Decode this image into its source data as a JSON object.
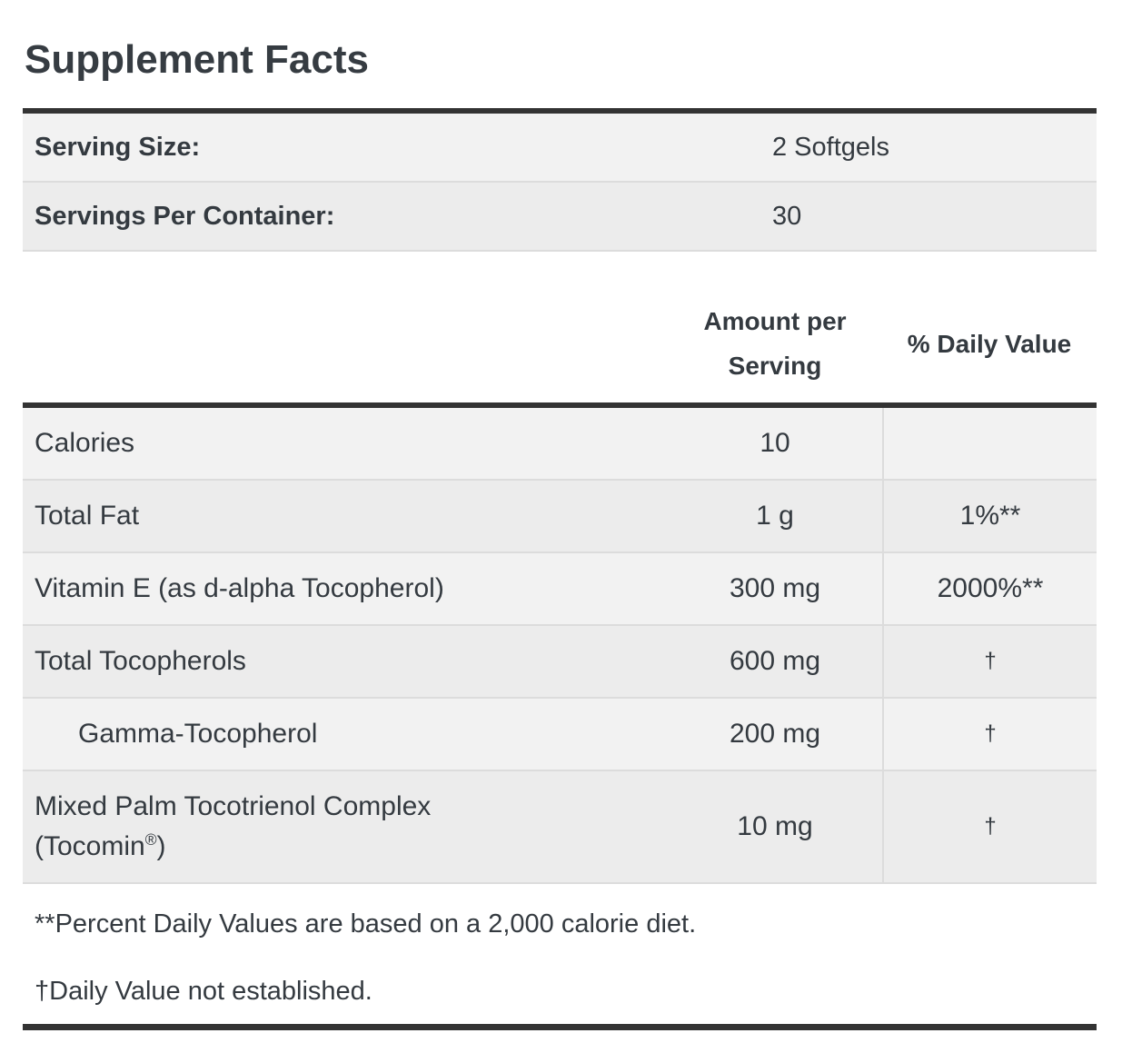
{
  "page": {
    "title": "Supplement Facts"
  },
  "serving": {
    "rows": [
      {
        "label": "Serving Size:",
        "value": "2 Softgels"
      },
      {
        "label": "Servings Per Container:",
        "value": "30"
      }
    ]
  },
  "nutrition": {
    "headers": {
      "amount": "Amount per Serving",
      "daily_value": "% Daily Value"
    },
    "rows": [
      {
        "name": "Calories",
        "amount": "10",
        "daily_value": "",
        "indent": false
      },
      {
        "name": "Total Fat",
        "amount": "1 g",
        "daily_value": "1%**",
        "indent": false
      },
      {
        "name": "Vitamin E (as d-alpha Tocopherol)",
        "amount": "300 mg",
        "daily_value": "2000%**",
        "indent": false
      },
      {
        "name": "Total Tocopherols",
        "amount": "600 mg",
        "daily_value": "†",
        "indent": false
      },
      {
        "name": "Gamma-Tocopherol",
        "amount": "200 mg",
        "daily_value": "†",
        "indent": true
      },
      {
        "name": "Mixed Palm Tocotrienol Complex (Tocomin®)",
        "amount": "10 mg",
        "daily_value": "†",
        "indent": false
      }
    ]
  },
  "footnotes": {
    "percent": "**Percent Daily Values are based on a 2,000 calorie diet.",
    "dagger": "†Daily Value not established."
  },
  "colors": {
    "text": "#343a40",
    "heavy_border": "#333333",
    "row_divider": "#dcdcdc",
    "stripe_light": "#f2f2f2",
    "stripe_dark": "#ececec",
    "background": "#ffffff"
  }
}
